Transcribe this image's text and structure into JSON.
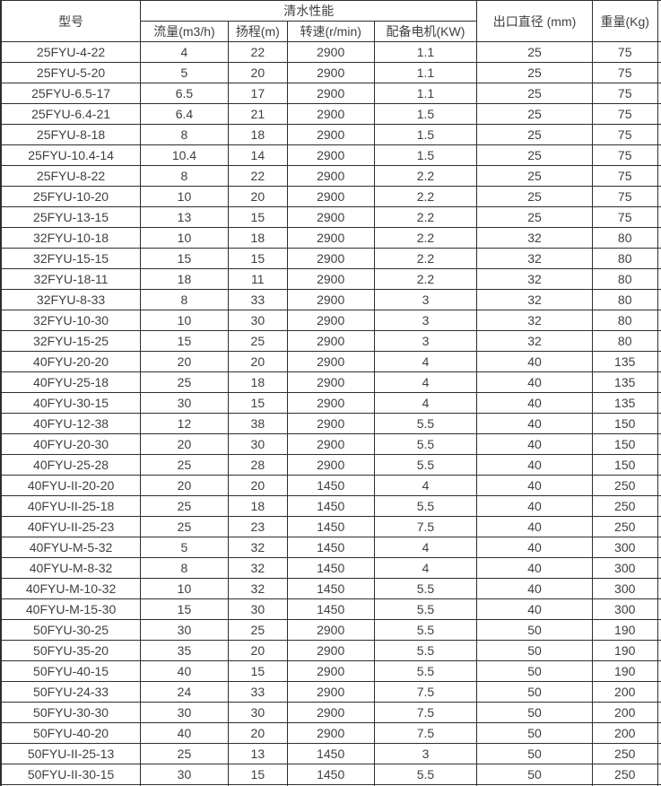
{
  "colors": {
    "border": "#2e2e2e",
    "text": "#3f3f3f",
    "background": "#ffffff"
  },
  "table": {
    "header": {
      "model": "型号",
      "performance_group": "清水性能",
      "flow": "流量(m3/h)",
      "head": "扬程(m)",
      "speed": "转速(r/min)",
      "motor": "配备电机(KW)",
      "outlet": "出口直径 (mm)",
      "weight": "重量(Kg)"
    },
    "column_keys": [
      "model",
      "flow",
      "head",
      "speed",
      "motor",
      "outlet",
      "weight"
    ],
    "rows": [
      [
        "25FYU-4-22",
        "4",
        "22",
        "2900",
        "1.1",
        "25",
        "75"
      ],
      [
        "25FYU-5-20",
        "5",
        "20",
        "2900",
        "1.1",
        "25",
        "75"
      ],
      [
        "25FYU-6.5-17",
        "6.5",
        "17",
        "2900",
        "1.1",
        "25",
        "75"
      ],
      [
        "25FYU-6.4-21",
        "6.4",
        "21",
        "2900",
        "1.5",
        "25",
        "75"
      ],
      [
        "25FYU-8-18",
        "8",
        "18",
        "2900",
        "1.5",
        "25",
        "75"
      ],
      [
        "25FYU-10.4-14",
        "10.4",
        "14",
        "2900",
        "1.5",
        "25",
        "75"
      ],
      [
        "25FYU-8-22",
        "8",
        "22",
        "2900",
        "2.2",
        "25",
        "75"
      ],
      [
        "25FYU-10-20",
        "10",
        "20",
        "2900",
        "2.2",
        "25",
        "75"
      ],
      [
        "25FYU-13-15",
        "13",
        "15",
        "2900",
        "2.2",
        "25",
        "75"
      ],
      [
        "32FYU-10-18",
        "10",
        "18",
        "2900",
        "2.2",
        "32",
        "80"
      ],
      [
        "32FYU-15-15",
        "15",
        "15",
        "2900",
        "2.2",
        "32",
        "80"
      ],
      [
        "32FYU-18-11",
        "18",
        "11",
        "2900",
        "2.2",
        "32",
        "80"
      ],
      [
        "32FYU-8-33",
        "8",
        "33",
        "2900",
        "3",
        "32",
        "80"
      ],
      [
        "32FYU-10-30",
        "10",
        "30",
        "2900",
        "3",
        "32",
        "80"
      ],
      [
        "32FYU-15-25",
        "15",
        "25",
        "2900",
        "3",
        "32",
        "80"
      ],
      [
        "40FYU-20-20",
        "20",
        "20",
        "2900",
        "4",
        "40",
        "135"
      ],
      [
        "40FYU-25-18",
        "25",
        "18",
        "2900",
        "4",
        "40",
        "135"
      ],
      [
        "40FYU-30-15",
        "30",
        "15",
        "2900",
        "4",
        "40",
        "135"
      ],
      [
        "40FYU-12-38",
        "12",
        "38",
        "2900",
        "5.5",
        "40",
        "150"
      ],
      [
        "40FYU-20-30",
        "20",
        "30",
        "2900",
        "5.5",
        "40",
        "150"
      ],
      [
        "40FYU-25-28",
        "25",
        "28",
        "2900",
        "5.5",
        "40",
        "150"
      ],
      [
        "40FYU-II-20-20",
        "20",
        "20",
        "1450",
        "4",
        "40",
        "250"
      ],
      [
        "40FYU-II-25-18",
        "25",
        "18",
        "1450",
        "5.5",
        "40",
        "250"
      ],
      [
        "40FYU-II-25-23",
        "25",
        "23",
        "1450",
        "7.5",
        "40",
        "250"
      ],
      [
        "40FYU-M-5-32",
        "5",
        "32",
        "1450",
        "4",
        "40",
        "300"
      ],
      [
        "40FYU-M-8-32",
        "8",
        "32",
        "1450",
        "4",
        "40",
        "300"
      ],
      [
        "40FYU-M-10-32",
        "10",
        "32",
        "1450",
        "5.5",
        "40",
        "300"
      ],
      [
        "40FYU-M-15-30",
        "15",
        "30",
        "1450",
        "5.5",
        "40",
        "300"
      ],
      [
        "50FYU-30-25",
        "30",
        "25",
        "2900",
        "5.5",
        "50",
        "190"
      ],
      [
        "50FYU-35-20",
        "35",
        "20",
        "2900",
        "5.5",
        "50",
        "190"
      ],
      [
        "50FYU-40-15",
        "40",
        "15",
        "2900",
        "5.5",
        "50",
        "190"
      ],
      [
        "50FYU-24-33",
        "24",
        "33",
        "2900",
        "7.5",
        "50",
        "200"
      ],
      [
        "50FYU-30-30",
        "30",
        "30",
        "2900",
        "7.5",
        "50",
        "200"
      ],
      [
        "50FYU-40-20",
        "40",
        "20",
        "2900",
        "7.5",
        "50",
        "200"
      ],
      [
        "50FYU-II-25-13",
        "25",
        "13",
        "1450",
        "3",
        "50",
        "250"
      ],
      [
        "50FYU-II-30-15",
        "30",
        "15",
        "1450",
        "5.5",
        "50",
        "250"
      ]
    ]
  }
}
